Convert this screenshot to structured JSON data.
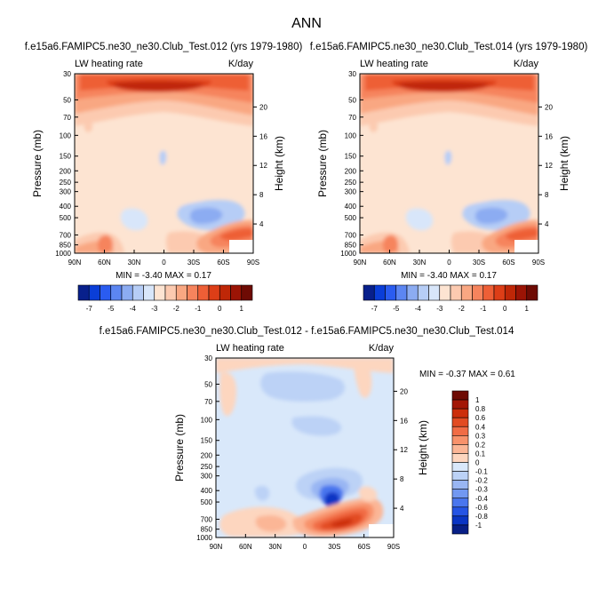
{
  "page": {
    "title": "ANN"
  },
  "panels": [
    {
      "subtitle": "f.e15a6.FAMIPC5.ne30_ne30.Club_Test.012 (yrs 1979-1980)",
      "left_label": "LW heating rate",
      "right_label": "K/day",
      "ylabel": "Pressure (mb)",
      "ylabel_right": "Height (km)",
      "stats": "MIN = -3.40   MAX =  0.17"
    },
    {
      "subtitle": "f.e15a6.FAMIPC5.ne30_ne30.Club_Test.014 (yrs 1979-1980)",
      "left_label": "LW heating rate",
      "right_label": "K/day",
      "ylabel": "Pressure (mb)",
      "ylabel_right": "Height (km)",
      "stats": "MIN = -3.40   MAX =  0.17"
    },
    {
      "subtitle": "f.e15a6.FAMIPC5.ne30_ne30.Club_Test.012 - f.e15a6.FAMIPC5.ne30_ne30.Club_Test.014",
      "left_label": "LW heating rate",
      "right_label": "K/day",
      "ylabel": "Pressure (mb)",
      "ylabel_right": "Height (km)",
      "stats": "MIN = -0.37  MAX =  0.61"
    }
  ],
  "chart_data": [
    {
      "type": "heatmap",
      "x_ticks": [
        "90N",
        "60N",
        "30N",
        "0",
        "30S",
        "60S",
        "90S"
      ],
      "y_ticks": [
        "30",
        "50",
        "70",
        "100",
        "150",
        "200",
        "250",
        "300",
        "400",
        "500",
        "700",
        "850",
        "1000"
      ],
      "y_ticks_right": [
        "20",
        "16",
        "12",
        "8",
        "4"
      ],
      "ylim": [
        30,
        1000
      ],
      "colorbar": {
        "labels": [
          "-7",
          "-5",
          "-4",
          "-3",
          "-2",
          "-1",
          "0",
          "1"
        ],
        "colors": [
          "#08208c",
          "#0a3ed8",
          "#2a5cf0",
          "#5c86f2",
          "#8cacf2",
          "#b6cdf6",
          "#d8e6fa",
          "#fde4d2",
          "#fccab0",
          "#f9a782",
          "#f6845d",
          "#ee5f36",
          "#dd3e17",
          "#bf2707",
          "#9b1405",
          "#6e0b04"
        ]
      }
    },
    {
      "type": "heatmap",
      "x_ticks": [
        "90N",
        "60N",
        "30N",
        "0",
        "30S",
        "60S",
        "90S"
      ],
      "y_ticks": [
        "30",
        "50",
        "70",
        "100",
        "150",
        "200",
        "250",
        "300",
        "400",
        "500",
        "700",
        "850",
        "1000"
      ],
      "y_ticks_right": [
        "20",
        "16",
        "12",
        "8",
        "4"
      ],
      "ylim": [
        30,
        1000
      ],
      "colorbar": {
        "labels": [
          "-7",
          "-5",
          "-4",
          "-3",
          "-2",
          "-1",
          "0",
          "1"
        ],
        "colors": [
          "#08208c",
          "#0a3ed8",
          "#2a5cf0",
          "#5c86f2",
          "#8cacf2",
          "#b6cdf6",
          "#d8e6fa",
          "#fde4d2",
          "#fccab0",
          "#f9a782",
          "#f6845d",
          "#ee5f36",
          "#dd3e17",
          "#bf2707",
          "#9b1405",
          "#6e0b04"
        ]
      }
    },
    {
      "type": "heatmap",
      "x_ticks": [
        "90N",
        "60N",
        "30N",
        "0",
        "30S",
        "60S",
        "90S"
      ],
      "y_ticks": [
        "30",
        "50",
        "70",
        "100",
        "150",
        "200",
        "250",
        "300",
        "400",
        "500",
        "700",
        "850",
        "1000"
      ],
      "y_ticks_right": [
        "20",
        "16",
        "12",
        "8",
        "4"
      ],
      "ylim": [
        30,
        1000
      ],
      "colorbar": {
        "labels": [
          "1",
          "0.8",
          "0.6",
          "0.4",
          "0.3",
          "0.2",
          "0.1",
          "0",
          "-0.1",
          "-0.2",
          "-0.3",
          "-0.4",
          "-0.6",
          "-0.8",
          "-1"
        ],
        "colors": [
          "#6e0b04",
          "#a31706",
          "#cc2e0b",
          "#e24b22",
          "#f16c45",
          "#f8926b",
          "#fbb696",
          "#fdd6bf",
          "#d9e8fa",
          "#bcd2f6",
          "#99b6f3",
          "#7298f1",
          "#4a76ee",
          "#2554e4",
          "#0a35c4",
          "#081f86"
        ]
      }
    }
  ]
}
